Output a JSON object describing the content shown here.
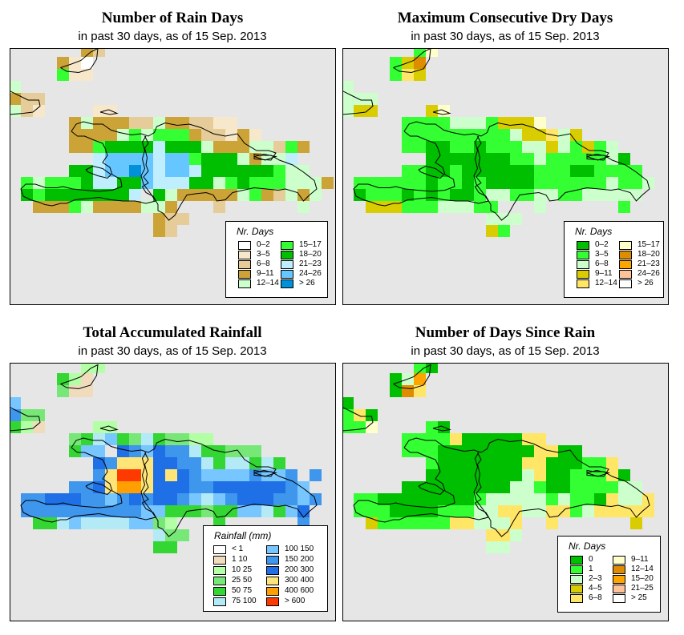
{
  "panels": [
    {
      "id": "rain-days",
      "title": "Number of Rain Days",
      "subtitle": "in past 30 days, as of  15 Sep. 2013",
      "legend": {
        "title": "Nr. Days",
        "items": [
          {
            "code": "a",
            "label": "0–2",
            "color": "#ffffff"
          },
          {
            "code": "b",
            "label": "3–5",
            "color": "#f7e8cc"
          },
          {
            "code": "c",
            "label": "6–8",
            "color": "#e6cc99"
          },
          {
            "code": "d",
            "label": "9–11",
            "color": "#cca336"
          },
          {
            "code": "e",
            "label": "12–14",
            "color": "#ccffcc"
          },
          {
            "code": "f",
            "label": "15–17",
            "color": "#33ff33"
          },
          {
            "code": "g",
            "label": "18–20",
            "color": "#00bf00"
          },
          {
            "code": "h",
            "label": "21–23",
            "color": "#bfeeff"
          },
          {
            "code": "i",
            "label": "24–26",
            "color": "#66c6ff"
          },
          {
            "code": "j",
            "label": "> 26",
            "color": "#0091d9"
          }
        ]
      },
      "grid_rows": [
        "......dc",
        "....dba",
        "....fbb",
        "e",
        "dcc",
        "ecb....bb",
        ".....dedddcceddccbb",
        ".....ddddefefffdccbdb",
        ".....ddfgggghgggedddeecfd",
        ".......hiiiihiifgggedeeh",
        ".....gghiijihiihggggggfee",
        ".fefffghhggihhhggefgfffeeed",
        ".gfgggggggh gedddddefdcede",
        "..dddfeddddeed...c......e",
        "............dcc",
        "............dc"
      ]
    },
    {
      "id": "max-dry-days",
      "title": "Maximum Consecutive Dry Days",
      "subtitle": "in past 30 days, as of  15 Sep. 2013",
      "legend": {
        "title": "Nr. Days",
        "items": [
          {
            "code": "a",
            "label": "0–2",
            "color": "#00bf00"
          },
          {
            "code": "b",
            "label": "3–5",
            "color": "#33ff33"
          },
          {
            "code": "c",
            "label": "6–8",
            "color": "#ccffcc"
          },
          {
            "code": "d",
            "label": "9–11",
            "color": "#d9cc00"
          },
          {
            "code": "e",
            "label": "12–14",
            "color": "#ffe666"
          },
          {
            "code": "f",
            "label": "15–17",
            "color": "#ffffcc"
          },
          {
            "code": "g",
            "label": "18–20",
            "color": "#e08c00"
          },
          {
            "code": "h",
            "label": "21–23",
            "color": "#ffa500"
          },
          {
            "code": "i",
            "label": "24–26",
            "color": "#ffc299"
          },
          {
            "code": "j",
            "label": "> 26",
            "color": "#ffffff"
          }
        ]
      },
      "grid_rows": [
        "......bf",
        "....bdg",
        "....bed",
        "c",
        "ccc",
        "cdd....df",
        ".....bbbbcccbdddf",
        ".....bbbbbbbbbcddecd",
        ".....bbaabbabbbccdcbdbc",
        ".......aaaaaaabbcbbbbbca",
        ".....bbaabaaaaaabbbaabbbb",
        ".bbbbbbabbabaaaabbbbbbcbbc",
        ".abbbababaabccbbccbbccccc",
        "..dddbbbcccbb...c......b",
        "............ccc",
        "............db"
      ]
    },
    {
      "id": "total-rainfall",
      "title": "Total Accumulated Rainfall",
      "subtitle": "in past 30 days, as of  15 Sep. 2013",
      "legend": {
        "title": "Rainfall (mm)",
        "items": [
          {
            "code": "a",
            "label": "< 1",
            "color": "#ffffff"
          },
          {
            "code": "b",
            "label": "1   10",
            "color": "#f0dcbc"
          },
          {
            "code": "c",
            "label": "10   25",
            "color": "#b3ffa6"
          },
          {
            "code": "d",
            "label": "25   50",
            "color": "#77e877"
          },
          {
            "code": "e",
            "label": "50   75",
            "color": "#33d633"
          },
          {
            "code": "f",
            "label": "75  100",
            "color": "#b3eaf6"
          },
          {
            "code": "g",
            "label": "100  150",
            "color": "#77c6ff"
          },
          {
            "code": "h",
            "label": "150  200",
            "color": "#3e96ed"
          },
          {
            "code": "i",
            "label": "200  300",
            "color": "#1f6fe6"
          },
          {
            "code": "j",
            "label": "300  400",
            "color": "#ffe577"
          },
          {
            "code": "k",
            "label": "400  600",
            "color": "#ffa000"
          },
          {
            "code": "l",
            "label": "> 600",
            "color": "#ff3a00"
          }
        ]
      },
      "grid_rows": [
        "......cc",
        "....ecb",
        "....dbb",
        "g",
        "hdd",
        "ecb....cc",
        ".....defgedfeddcc",
        ".....egg ihgihhfeeddd",
        ".......ihjjjiihhfeffefe",
        ".......hjlljijihgggghggh h",
        ".....hhijkkjiiihhiiiiiihg",
        ".hhiiihhghihiihgfghiiihhgh",
        ".hhhhhhhhhhggeeedeeggfegi",
        "..eefgffffggdc...e......h",
        "............fdd",
        "............ee"
      ]
    },
    {
      "id": "days-since-rain",
      "title": "Number of Days Since Rain",
      "subtitle": "in past 30 days, as of  15 Sep. 2013",
      "legend": {
        "title": "Nr. Days",
        "items": [
          {
            "code": "a",
            "label": "0",
            "color": "#00bf00"
          },
          {
            "code": "b",
            "label": "1",
            "color": "#33ff33"
          },
          {
            "code": "c",
            "label": "2–3",
            "color": "#ccffcc"
          },
          {
            "code": "d",
            "label": "4–5",
            "color": "#d9cc00"
          },
          {
            "code": "e",
            "label": "6–8",
            "color": "#ffe666"
          },
          {
            "code": "f",
            "label": "9–11",
            "color": "#ffffcc"
          },
          {
            "code": "g",
            "label": "12–14",
            "color": "#e08c00"
          },
          {
            "code": "h",
            "label": "15–20",
            "color": "#ffa500"
          },
          {
            "code": "i",
            "label": "21–25",
            "color": "#ffc299"
          },
          {
            "code": "j",
            "label": "> 25",
            "color": "#ffffff"
          }
        ]
      },
      "grid_rows": [
        "......ba",
        "....ach",
        "....age",
        "a",
        "bea",
        "bbf....ba",
        ".....bbbbeaaaaaee",
        ".....bbbaaaaaaaaeeaa",
        ".......baaaaaaaeeaaabbe",
        ".......aaaaaaaaceaabbbea",
        ".....aaaaaaaaaccbaabbbbcc",
        ".bbaaaaaaaabcccccbcbbaecce",
        ".bbbaaaabbbcceecceebceeeee",
        "..dbbbbbbeeccce..e......d",
        "............eec",
        "............cc"
      ]
    }
  ]
}
